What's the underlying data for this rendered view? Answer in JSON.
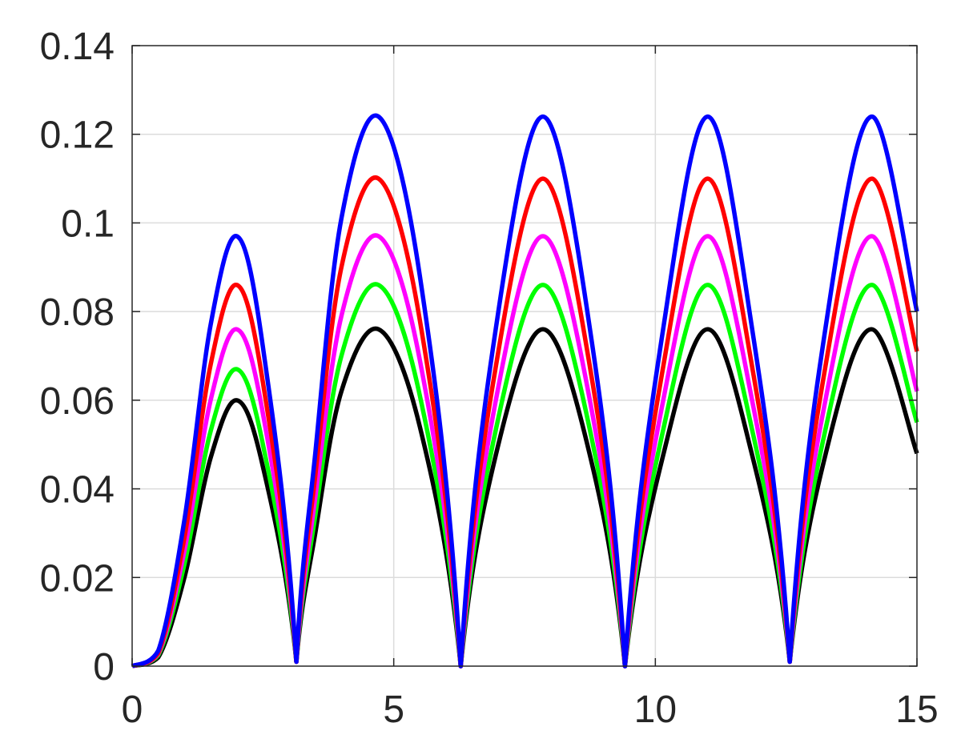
{
  "chart_data": {
    "type": "line",
    "title": "",
    "xlabel": "",
    "ylabel": "",
    "xlim": [
      0,
      15
    ],
    "ylim": [
      0,
      0.14
    ],
    "xticks": [
      {
        "value": 0,
        "label": "0"
      },
      {
        "value": 5,
        "label": "5"
      },
      {
        "value": 10,
        "label": "10"
      },
      {
        "value": 15,
        "label": "15"
      }
    ],
    "yticks": [
      {
        "value": 0,
        "label": "0"
      },
      {
        "value": 0.02,
        "label": "0.02"
      },
      {
        "value": 0.04,
        "label": "0.04"
      },
      {
        "value": 0.06,
        "label": "0.06"
      },
      {
        "value": 0.08,
        "label": "0.08"
      },
      {
        "value": 0.1,
        "label": "0.1"
      },
      {
        "value": 0.12,
        "label": "0.12"
      },
      {
        "value": 0.14,
        "label": "0.14"
      }
    ],
    "grid": true,
    "legend": "none",
    "series": [
      {
        "color": "#000000",
        "x": [
          0,
          0.5,
          1.0,
          1.5,
          2.0,
          2.5,
          3.14,
          3.5,
          4.0,
          4.71,
          5.5,
          6.28,
          7.0,
          7.85,
          8.7,
          9.42,
          10.2,
          11.0,
          11.8,
          12.57,
          13.3,
          14.14,
          15.0
        ],
        "y": [
          0,
          0.002,
          0.02,
          0.047,
          0.06,
          0.045,
          0.001,
          0.03,
          0.062,
          0.076,
          0.054,
          0,
          0.05,
          0.076,
          0.05,
          0,
          0.05,
          0.076,
          0.05,
          0.001,
          0.05,
          0.076,
          0.048
        ]
      },
      {
        "color": "#00ff00",
        "x": [
          0,
          0.5,
          1.0,
          1.5,
          2.0,
          2.5,
          3.14,
          3.5,
          4.0,
          4.71,
          5.5,
          6.28,
          7.0,
          7.85,
          8.7,
          9.42,
          10.2,
          11.0,
          11.8,
          12.57,
          13.3,
          14.14,
          15.0
        ],
        "y": [
          0,
          0.0025,
          0.023,
          0.053,
          0.067,
          0.05,
          0.001,
          0.034,
          0.07,
          0.086,
          0.061,
          0,
          0.056,
          0.086,
          0.056,
          0,
          0.056,
          0.086,
          0.056,
          0.001,
          0.056,
          0.086,
          0.055
        ]
      },
      {
        "color": "#ff00ff",
        "x": [
          0,
          0.5,
          1.0,
          1.5,
          2.0,
          2.5,
          3.14,
          3.5,
          4.0,
          4.71,
          5.5,
          6.28,
          7.0,
          7.85,
          8.7,
          9.42,
          10.2,
          11.0,
          11.8,
          12.57,
          13.3,
          14.14,
          15.0
        ],
        "y": [
          0,
          0.0028,
          0.026,
          0.06,
          0.076,
          0.057,
          0.001,
          0.038,
          0.079,
          0.097,
          0.069,
          0,
          0.063,
          0.097,
          0.063,
          0,
          0.063,
          0.097,
          0.063,
          0.001,
          0.063,
          0.097,
          0.062
        ]
      },
      {
        "color": "#ff0000",
        "x": [
          0,
          0.5,
          1.0,
          1.5,
          2.0,
          2.5,
          3.14,
          3.5,
          4.0,
          4.71,
          5.5,
          6.28,
          7.0,
          7.85,
          8.7,
          9.42,
          10.2,
          11.0,
          11.8,
          12.57,
          13.3,
          14.14,
          15.0
        ],
        "y": [
          0,
          0.003,
          0.029,
          0.068,
          0.086,
          0.064,
          0.001,
          0.043,
          0.09,
          0.11,
          0.078,
          0,
          0.071,
          0.11,
          0.071,
          0,
          0.071,
          0.11,
          0.071,
          0.001,
          0.071,
          0.11,
          0.071
        ]
      },
      {
        "color": "#0000ff",
        "x": [
          0,
          0.5,
          1.0,
          1.5,
          2.0,
          2.5,
          3.14,
          3.5,
          4.0,
          4.71,
          5.5,
          6.28,
          7.0,
          7.85,
          8.7,
          9.42,
          10.2,
          11.0,
          11.8,
          12.57,
          13.3,
          14.14,
          15.0
        ],
        "y": [
          0,
          0.0035,
          0.033,
          0.077,
          0.097,
          0.072,
          0.001,
          0.048,
          0.101,
          0.124,
          0.088,
          0,
          0.08,
          0.124,
          0.08,
          0,
          0.08,
          0.124,
          0.08,
          0.001,
          0.08,
          0.124,
          0.08
        ]
      }
    ]
  }
}
